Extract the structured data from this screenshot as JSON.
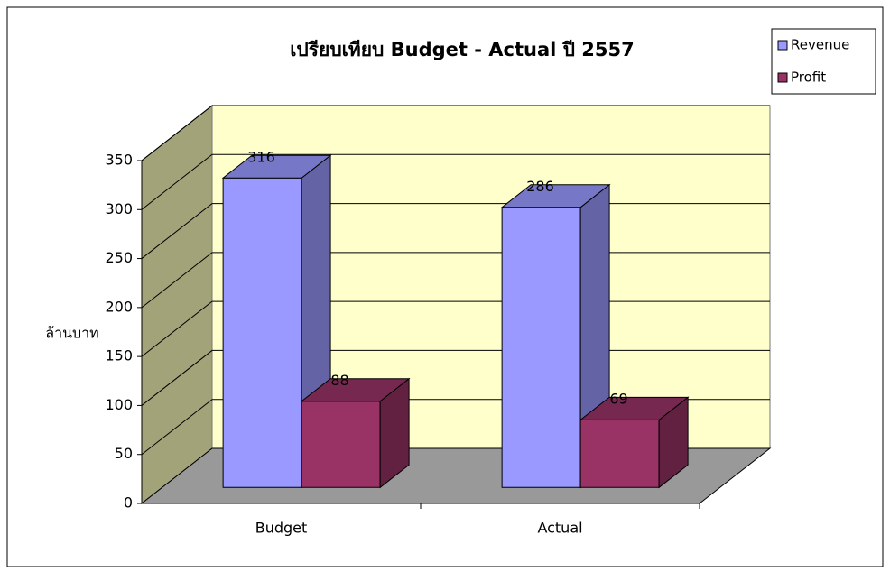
{
  "chart_data": {
    "type": "bar3d",
    "title": "เปรียบเทียบ Budget - Actual ปี 2557",
    "y_label": "ล้านบาท",
    "categories": [
      "Budget",
      "Actual"
    ],
    "series": [
      {
        "name": "Revenue",
        "color": "#9999ff",
        "values": [
          316,
          286
        ]
      },
      {
        "name": "Profit",
        "color": "#993366",
        "values": [
          88,
          69
        ]
      }
    ],
    "ylim": [
      0,
      350
    ],
    "yticks": [
      0,
      50,
      100,
      150,
      200,
      250,
      300,
      350
    ],
    "grid": true,
    "legend": "top-right"
  }
}
